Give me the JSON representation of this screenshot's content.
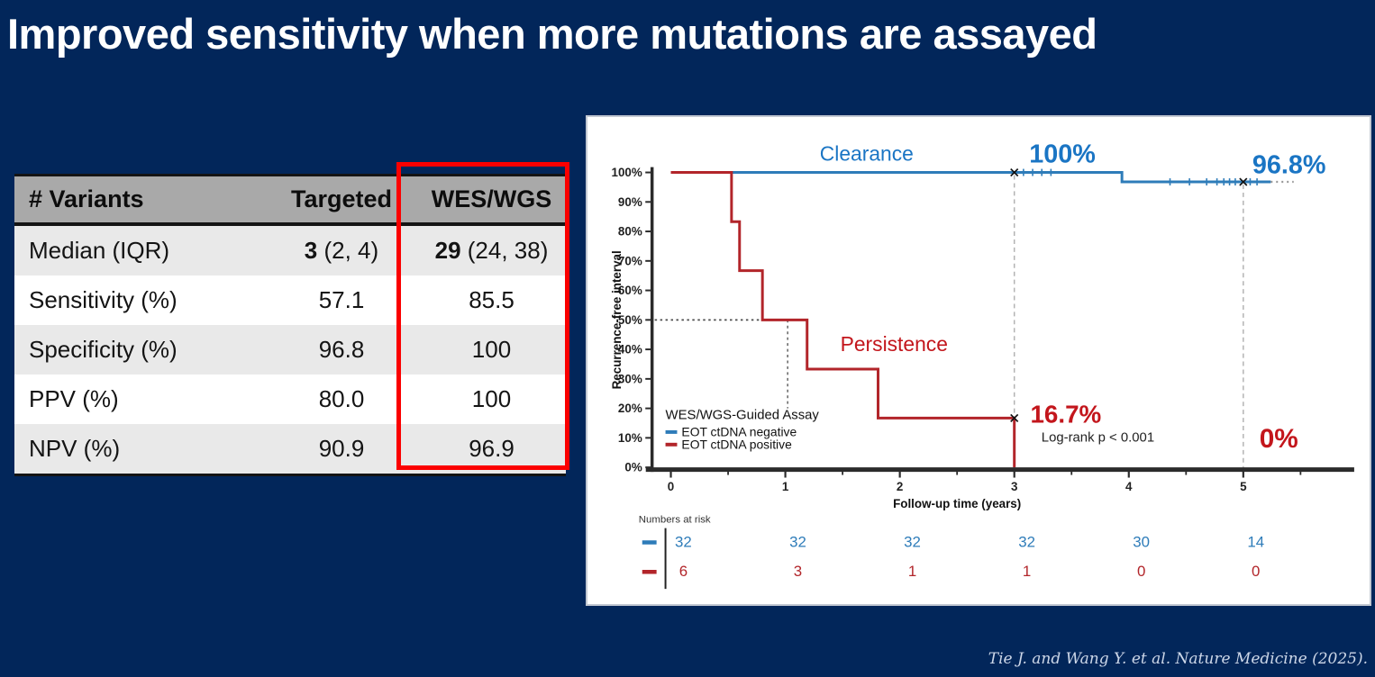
{
  "title": "Improved sensitivity when more mutations are assayed",
  "citation": "Tie J. and Wang Y. et al. Nature Medicine (2025).",
  "colors": {
    "background": "#02265a",
    "highlight_box": "#fb0000",
    "table_header_bg": "#a9a9a9",
    "table_alt_row_bg": "#e9e9e9",
    "clearance_blue": "#2e7cb9",
    "clearance_text_blue": "#1a75c4",
    "persistence_red": "#b2252a",
    "persistence_text_red": "#c3161c"
  },
  "table": {
    "headers": [
      "# Variants",
      "Targeted",
      "WES/WGS"
    ],
    "rows": [
      {
        "label": "Median (IQR)",
        "targeted_bold": "3",
        "targeted_suffix": " (2, 4)",
        "wes_bold": "29",
        "wes_suffix": " (24, 38)"
      },
      {
        "label": "Sensitivity (%)",
        "targeted": "57.1",
        "wes": "85.5"
      },
      {
        "label": "Specificity (%)",
        "targeted": "96.8",
        "wes": "100"
      },
      {
        "label": "PPV (%)",
        "targeted": "80.0",
        "wes": "100"
      },
      {
        "label": "NPV (%)",
        "targeted": "90.9",
        "wes": "96.9"
      }
    ]
  },
  "chart_data": {
    "type": "line",
    "subtype": "kaplan-meier",
    "title": "",
    "xlabel": "Follow-up time (years)",
    "ylabel": "Recurrence-free interval",
    "xlim": [
      0,
      5.9
    ],
    "ylim": [
      0,
      100
    ],
    "grid": false,
    "x_ticks": [
      0,
      1,
      2,
      3,
      4,
      5
    ],
    "x_minor_ticks": [
      0.5,
      1.5,
      2.5,
      3.5,
      4.5,
      5.5
    ],
    "y_ticks": [
      0,
      10,
      20,
      30,
      40,
      50,
      60,
      70,
      80,
      90,
      100
    ],
    "y_tick_suffix": "%",
    "series": [
      {
        "name": "EOT ctDNA negative",
        "curve_label": "Clearance",
        "color": "#2e7cb9",
        "steps": [
          [
            0,
            100
          ],
          [
            3.94,
            100
          ],
          [
            3.94,
            96.8
          ],
          [
            5.24,
            96.8
          ]
        ],
        "dotted_tail": [
          [
            5.24,
            96.8
          ],
          [
            5.44,
            96.8
          ]
        ],
        "censor_marks": [
          [
            3,
            100
          ],
          [
            5,
            96.8
          ]
        ],
        "tick_marks": [
          [
            3.08,
            100
          ],
          [
            3.16,
            100
          ],
          [
            3.24,
            100
          ],
          [
            3.32,
            100
          ],
          [
            4.36,
            96.8
          ],
          [
            4.53,
            96.8
          ],
          [
            4.68,
            96.8
          ],
          [
            4.77,
            96.8
          ],
          [
            4.83,
            96.8
          ],
          [
            4.88,
            96.8
          ],
          [
            4.93,
            96.8
          ],
          [
            5.06,
            96.8
          ],
          [
            5.12,
            96.8
          ]
        ],
        "value_at_3yr": "100%",
        "value_at_5yr": "96.8%"
      },
      {
        "name": "EOT ctDNA positive",
        "curve_label": "Persistence",
        "color": "#b2252a",
        "steps": [
          [
            0,
            100
          ],
          [
            0.53,
            100
          ],
          [
            0.53,
            83.3
          ],
          [
            0.6,
            83.3
          ],
          [
            0.6,
            66.7
          ],
          [
            0.8,
            66.7
          ],
          [
            0.8,
            50
          ],
          [
            1.19,
            50
          ],
          [
            1.19,
            33.3
          ],
          [
            1.81,
            33.3
          ],
          [
            1.81,
            16.7
          ],
          [
            3,
            16.7
          ],
          [
            3,
            0
          ]
        ],
        "censor_marks": [
          [
            3,
            16.7
          ]
        ],
        "value_at_3yr": "16.7%",
        "value_at_5yr": "0%"
      }
    ],
    "median_reference": {
      "y": 50,
      "x": 1.02
    },
    "landmark_lines": [
      3,
      5
    ],
    "annotations": [
      {
        "id": "clearance-curve-label",
        "text": "Clearance",
        "x": 1.71,
        "y": 104,
        "color": "#1a75c4",
        "size": 23,
        "bold": false
      },
      {
        "id": "clearance-3yr-value",
        "text": "100%",
        "x": 3.42,
        "y": 103.3,
        "color": "#1a75c4",
        "size": 29,
        "bold": true
      },
      {
        "id": "clearance-5yr-value",
        "text": "96.8%",
        "x": 5.4,
        "y": 99.7,
        "color": "#1a75c4",
        "size": 29,
        "bold": true
      },
      {
        "id": "persistence-curve-label",
        "text": "Persistence",
        "x": 1.95,
        "y": 39.4,
        "color": "#c3161c",
        "size": 23,
        "bold": false
      },
      {
        "id": "persistence-3yr-value",
        "text": "16.7%",
        "x": 3.45,
        "y": 15.2,
        "color": "#c3161c",
        "size": 28,
        "bold": true
      },
      {
        "id": "persistence-5yr-value",
        "text": "0%",
        "x": 5.31,
        "y": 6.7,
        "color": "#c3161c",
        "size": 30,
        "bold": true
      },
      {
        "id": "pvalue",
        "text": "Log-rank p < 0.001",
        "x": 3.73,
        "y": 8.8,
        "color": "#222222",
        "size": 15,
        "bold": false
      }
    ],
    "legend": {
      "title": "WES/WGS-Guided Assay",
      "items": [
        {
          "label": "EOT ctDNA negative",
          "color": "#2e7cb9"
        },
        {
          "label": "EOT ctDNA positive",
          "color": "#b2252a"
        }
      ]
    },
    "risk_table": {
      "label": "Numbers at risk",
      "times": [
        0,
        1,
        2,
        3,
        4,
        5
      ],
      "rows": [
        {
          "name": "EOT ctDNA negative",
          "color": "#2e7cb9",
          "values": [
            32,
            32,
            32,
            32,
            30,
            14
          ]
        },
        {
          "name": "EOT ctDNA positive",
          "color": "#b2252a",
          "values": [
            6,
            3,
            1,
            1,
            0,
            0
          ]
        }
      ]
    }
  }
}
